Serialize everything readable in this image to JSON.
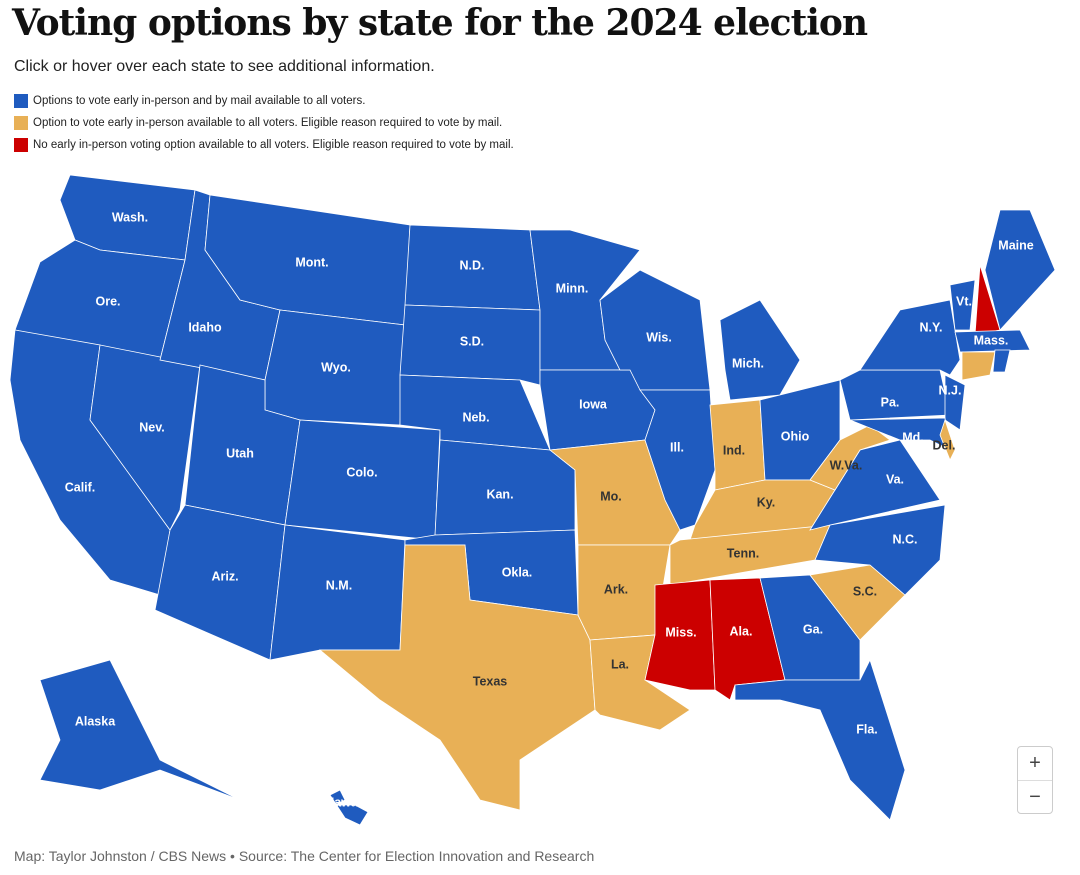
{
  "title": "Voting options by state for the 2024 election",
  "subtitle": "Click or hover over each state to see additional information.",
  "legend": [
    {
      "label": "Options to vote early in-person and by mail available to all voters.",
      "color": "#1f5bbf"
    },
    {
      "label": "Option to vote early in-person available to all voters. Eligible reason required to vote by mail.",
      "color": "#e8b056"
    },
    {
      "label": "No early in-person voting option available to all voters. Eligible reason required to vote by mail.",
      "color": "#cc0000"
    }
  ],
  "states": [
    {
      "label": "Wash.",
      "category": 0
    },
    {
      "label": "Ore.",
      "category": 0
    },
    {
      "label": "Calif.",
      "category": 0
    },
    {
      "label": "Nev.",
      "category": 0
    },
    {
      "label": "Idaho",
      "category": 0
    },
    {
      "label": "Mont.",
      "category": 0
    },
    {
      "label": "Wyo.",
      "category": 0
    },
    {
      "label": "Utah",
      "category": 0
    },
    {
      "label": "Colo.",
      "category": 0
    },
    {
      "label": "Ariz.",
      "category": 0
    },
    {
      "label": "N.M.",
      "category": 0
    },
    {
      "label": "N.D.",
      "category": 0
    },
    {
      "label": "S.D.",
      "category": 0
    },
    {
      "label": "Neb.",
      "category": 0
    },
    {
      "label": "Kan.",
      "category": 0
    },
    {
      "label": "Okla.",
      "category": 0
    },
    {
      "label": "Texas",
      "category": 1
    },
    {
      "label": "Minn.",
      "category": 0
    },
    {
      "label": "Iowa",
      "category": 0
    },
    {
      "label": "Mo.",
      "category": 1
    },
    {
      "label": "Ark.",
      "category": 1
    },
    {
      "label": "La.",
      "category": 1
    },
    {
      "label": "Wis.",
      "category": 0
    },
    {
      "label": "Ill.",
      "category": 0
    },
    {
      "label": "Mich.",
      "category": 0
    },
    {
      "label": "Ind.",
      "category": 1
    },
    {
      "label": "Ohio",
      "category": 0
    },
    {
      "label": "Ky.",
      "category": 1
    },
    {
      "label": "Tenn.",
      "category": 1
    },
    {
      "label": "Miss.",
      "category": 2
    },
    {
      "label": "Ala.",
      "category": 2
    },
    {
      "label": "Ga.",
      "category": 0
    },
    {
      "label": "Fla.",
      "category": 0
    },
    {
      "label": "S.C.",
      "category": 1
    },
    {
      "label": "N.C.",
      "category": 0
    },
    {
      "label": "Va.",
      "category": 0
    },
    {
      "label": "W.Va.",
      "category": 1
    },
    {
      "label": "Pa.",
      "category": 0
    },
    {
      "label": "N.Y.",
      "category": 0
    },
    {
      "label": "N.J.",
      "category": 0
    },
    {
      "label": "Md.",
      "category": 0
    },
    {
      "label": "Del.",
      "category": 1
    },
    {
      "label": "Vt.",
      "category": 0
    },
    {
      "label": null,
      "category": 2
    },
    {
      "label": "Maine",
      "category": 0
    },
    {
      "label": "Mass.",
      "category": 0
    },
    {
      "label": null,
      "category": 1
    },
    {
      "label": null,
      "category": 0
    },
    {
      "label": "Alaska",
      "category": 0
    },
    {
      "label": "Hawaii",
      "category": 0
    }
  ],
  "zoom": {
    "in": "+",
    "out": "−"
  },
  "credit": "Map: Taylor Johnston / CBS News • Source: The Center for Election Innovation and Research"
}
